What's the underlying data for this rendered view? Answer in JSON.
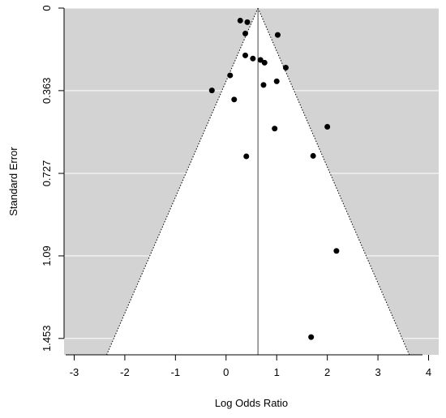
{
  "chart_data": {
    "type": "scatter",
    "subtype": "funnel",
    "title": "",
    "xlabel": "Log Odds Ratio",
    "ylabel": "Standard Error",
    "xlim": [
      -3.2,
      4.2
    ],
    "ylim": [
      0,
      1.525
    ],
    "y_reversed": true,
    "x_ticks": [
      "-3",
      "-2",
      "-1",
      "0",
      "1",
      "2",
      "3",
      "4"
    ],
    "y_ticks": [
      "0",
      "0.363",
      "0.727",
      "1.09",
      "1.453"
    ],
    "grid": "horizontal",
    "background_color": "#d3d3d3",
    "funnel_color": "#ffffff",
    "gridline_color": "#ffffff",
    "summary_estimate": 0.63,
    "funnel_max_se": 1.525,
    "points": [
      {
        "x": 0.28,
        "y": 0.055
      },
      {
        "x": 0.42,
        "y": 0.062
      },
      {
        "x": 0.38,
        "y": 0.112
      },
      {
        "x": 1.02,
        "y": 0.118
      },
      {
        "x": 0.38,
        "y": 0.208
      },
      {
        "x": 0.53,
        "y": 0.222
      },
      {
        "x": 0.68,
        "y": 0.228
      },
      {
        "x": 0.76,
        "y": 0.24
      },
      {
        "x": 1.18,
        "y": 0.262
      },
      {
        "x": 0.08,
        "y": 0.296
      },
      {
        "x": 1.0,
        "y": 0.322
      },
      {
        "x": 0.74,
        "y": 0.338
      },
      {
        "x": -0.28,
        "y": 0.362
      },
      {
        "x": 0.16,
        "y": 0.402
      },
      {
        "x": 2.0,
        "y": 0.522
      },
      {
        "x": 0.96,
        "y": 0.53
      },
      {
        "x": 1.72,
        "y": 0.65
      },
      {
        "x": 0.4,
        "y": 0.652
      },
      {
        "x": 2.18,
        "y": 1.068
      },
      {
        "x": 1.68,
        "y": 1.447
      }
    ]
  }
}
